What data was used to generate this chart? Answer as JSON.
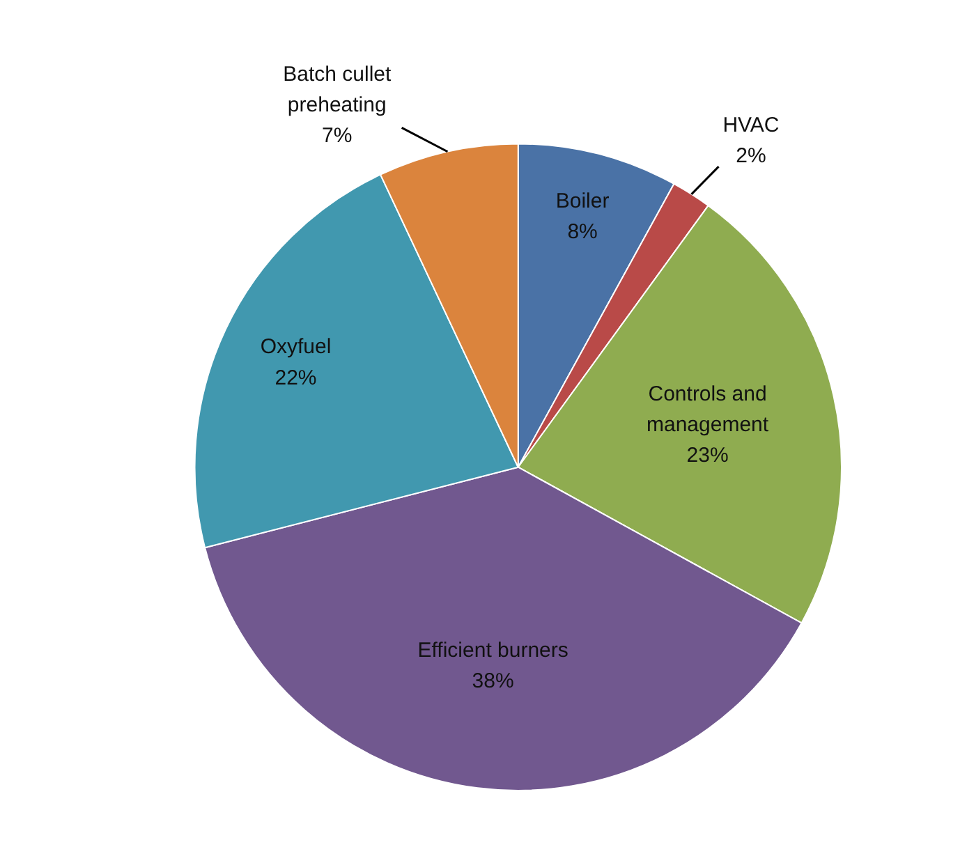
{
  "chart_data": {
    "type": "pie",
    "categories": [
      "Boiler",
      "HVAC",
      "Controls and management",
      "Efficient burners",
      "Oxyfuel",
      "Batch cullet preheating"
    ],
    "values": [
      8,
      2,
      23,
      38,
      22,
      7
    ],
    "value_labels": [
      "8%",
      "2%",
      "23%",
      "38%",
      "22%",
      "7%"
    ],
    "colors": [
      "#4a72a6",
      "#b94a48",
      "#8fac50",
      "#71588f",
      "#4198af",
      "#db843d"
    ],
    "legend": false
  }
}
